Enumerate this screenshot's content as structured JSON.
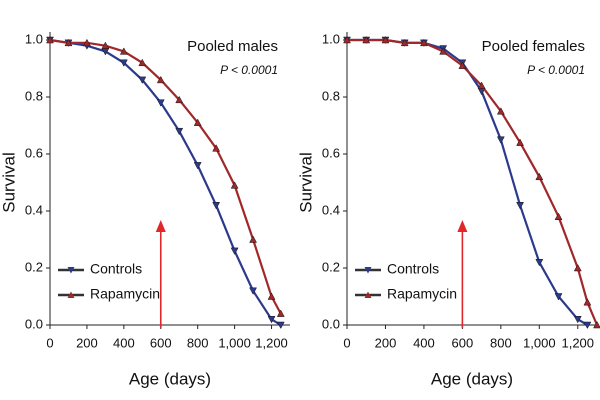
{
  "chart_data": [
    {
      "type": "line",
      "title": "Pooled males",
      "annotation": "P < 0.0001",
      "xlabel": "Age (days)",
      "ylabel": "Survival",
      "x": [
        0,
        100,
        200,
        300,
        400,
        500,
        600,
        700,
        800,
        900,
        1000,
        1100,
        1200,
        1250,
        1300
      ],
      "series": [
        {
          "name": "Controls",
          "color": "#2b3a8c",
          "marker": "down",
          "values": [
            1,
            0.99,
            0.98,
            0.96,
            0.92,
            0.86,
            0.78,
            0.68,
            0.56,
            0.42,
            0.26,
            0.12,
            0.02,
            0,
            null
          ]
        },
        {
          "name": "Rapamycin",
          "color": "#a0282a",
          "marker": "up",
          "values": [
            1,
            0.99,
            0.99,
            0.98,
            0.96,
            0.92,
            0.86,
            0.79,
            0.71,
            0.62,
            0.49,
            0.3,
            0.1,
            0.04,
            null
          ]
        }
      ],
      "xlim": [
        0,
        1300
      ],
      "ylim": [
        0,
        1
      ],
      "xticks": [
        0,
        200,
        400,
        600,
        800,
        {
          "value": 1000,
          "label": "1,000"
        },
        {
          "value": 1200,
          "label": "1,200"
        }
      ],
      "yticks": [
        {
          "value": 0,
          "label": "0.0"
        },
        0.2,
        0.4,
        0.6,
        0.8,
        {
          "value": 1,
          "label": "1.0"
        }
      ],
      "arrow_x": 600,
      "legend": "lower-left"
    },
    {
      "type": "line",
      "title": "Pooled females",
      "annotation": "P < 0.0001",
      "xlabel": "Age (days)",
      "ylabel": "Survival",
      "x": [
        0,
        100,
        200,
        300,
        400,
        500,
        600,
        700,
        800,
        900,
        1000,
        1100,
        1200,
        1250,
        1300
      ],
      "series": [
        {
          "name": "Controls",
          "color": "#2b3a8c",
          "marker": "down",
          "values": [
            1,
            1,
            1,
            0.99,
            0.99,
            0.97,
            0.92,
            0.82,
            0.65,
            0.42,
            0.22,
            0.1,
            0.02,
            0,
            null
          ]
        },
        {
          "name": "Rapamycin",
          "color": "#a0282a",
          "marker": "up",
          "values": [
            1,
            1,
            1,
            0.99,
            0.99,
            0.96,
            0.91,
            0.84,
            0.75,
            0.64,
            0.52,
            0.38,
            0.2,
            0.08,
            0
          ]
        }
      ],
      "xlim": [
        0,
        1300
      ],
      "ylim": [
        0,
        1
      ],
      "xticks": [
        0,
        200,
        400,
        600,
        800,
        {
          "value": 1000,
          "label": "1,000"
        },
        {
          "value": 1200,
          "label": "1,200"
        }
      ],
      "yticks": [
        {
          "value": 0,
          "label": "0.0"
        },
        0.2,
        0.4,
        0.6,
        0.8,
        {
          "value": 1,
          "label": "1.0"
        }
      ],
      "arrow_x": 600,
      "legend": "lower-left"
    }
  ]
}
